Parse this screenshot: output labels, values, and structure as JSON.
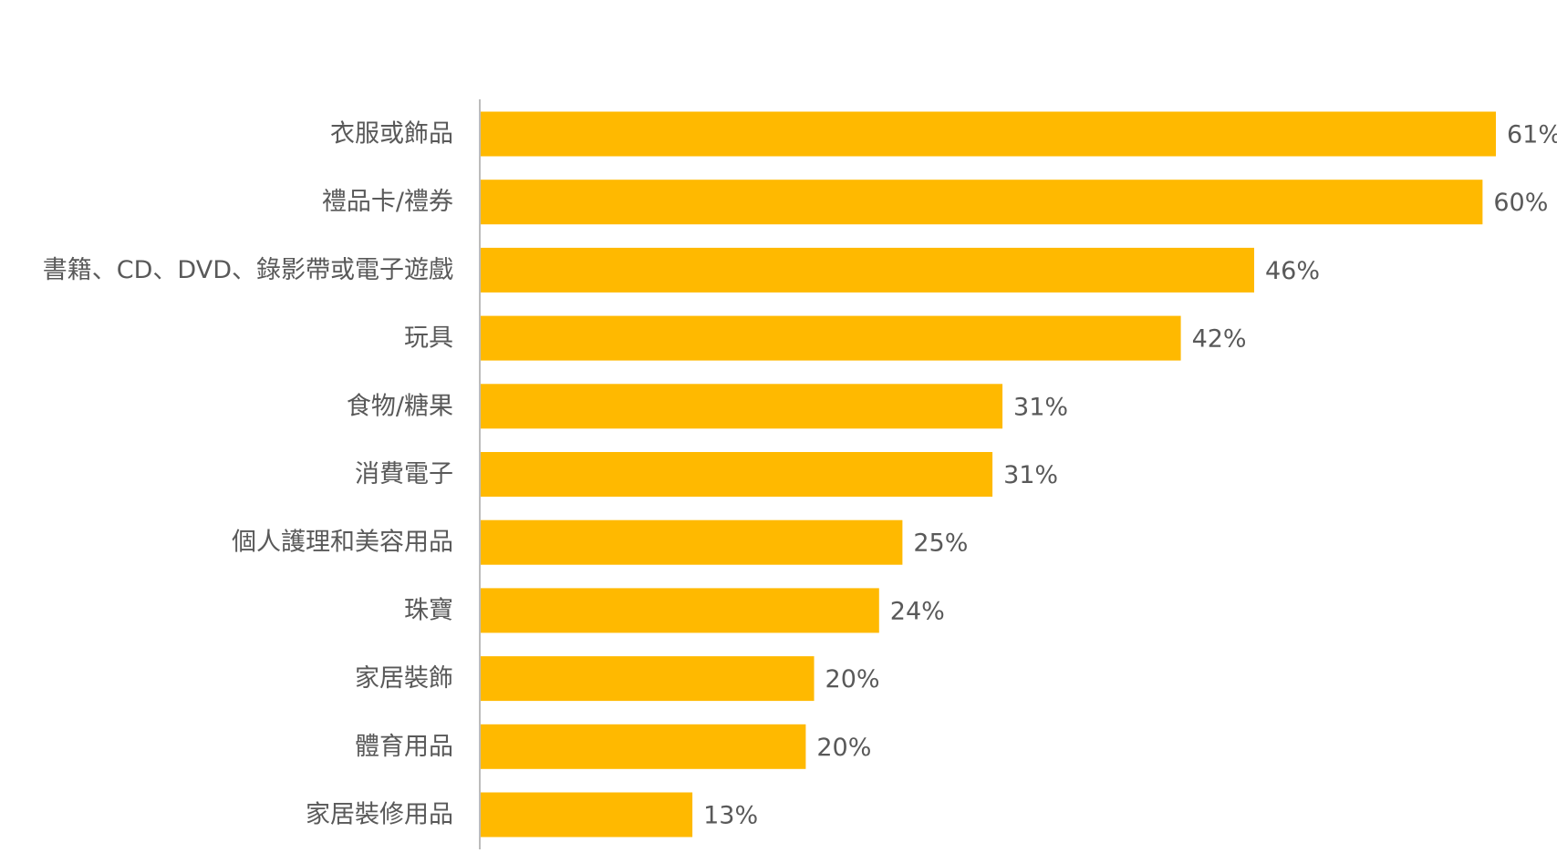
{
  "chart_data": {
    "type": "hbar",
    "categories": [
      "衣服或飾品",
      "禮品卡/禮券",
      "書籍、CD、DVD、錄影帶或電子遊戲",
      "玩具",
      "食物/糖果",
      "消費電子",
      "個人護理和美容用品",
      "珠寶",
      "家居裝飾",
      "體育用品",
      "家居裝修用品"
    ],
    "values": [
      60.9,
      60.1,
      46.4,
      42.0,
      31.3,
      30.7,
      25.3,
      23.9,
      20.0,
      19.5,
      12.7
    ],
    "value_labels": [
      "61%",
      "60%",
      "46%",
      "42%",
      "31%",
      "31%",
      "25%",
      "24%",
      "20%",
      "20%",
      "13%"
    ],
    "color": "#FFB900"
  }
}
